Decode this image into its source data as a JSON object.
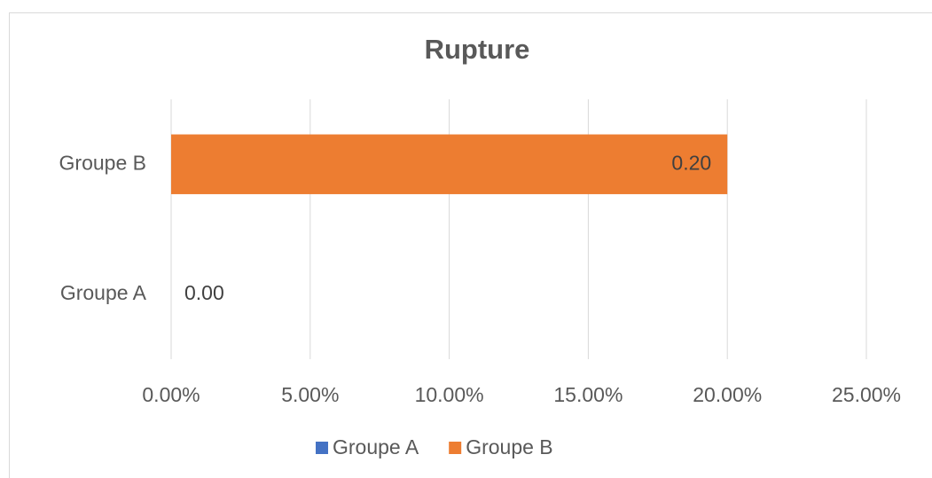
{
  "chart_data": {
    "type": "hbar",
    "title": "Rupture",
    "categories": [
      "Groupe A",
      "Groupe B"
    ],
    "series": [
      {
        "name": "Groupe A",
        "color": "#4472c4",
        "values": [
          0,
          null
        ],
        "value_labels": [
          "0.00",
          null
        ]
      },
      {
        "name": "Groupe B",
        "color": "#ed7d31",
        "values": [
          null,
          20
        ],
        "value_labels": [
          null,
          "0.20"
        ]
      }
    ],
    "xlim": [
      0,
      25
    ],
    "xticks": [
      {
        "value": 0,
        "label": "0.00%"
      },
      {
        "value": 5,
        "label": "5.00%"
      },
      {
        "value": 10,
        "label": "10.00%"
      },
      {
        "value": 15,
        "label": "15.00%"
      },
      {
        "value": 20,
        "label": "20.00%"
      },
      {
        "value": 25,
        "label": "25.00%"
      }
    ],
    "grid": true,
    "legend": "bottom"
  }
}
